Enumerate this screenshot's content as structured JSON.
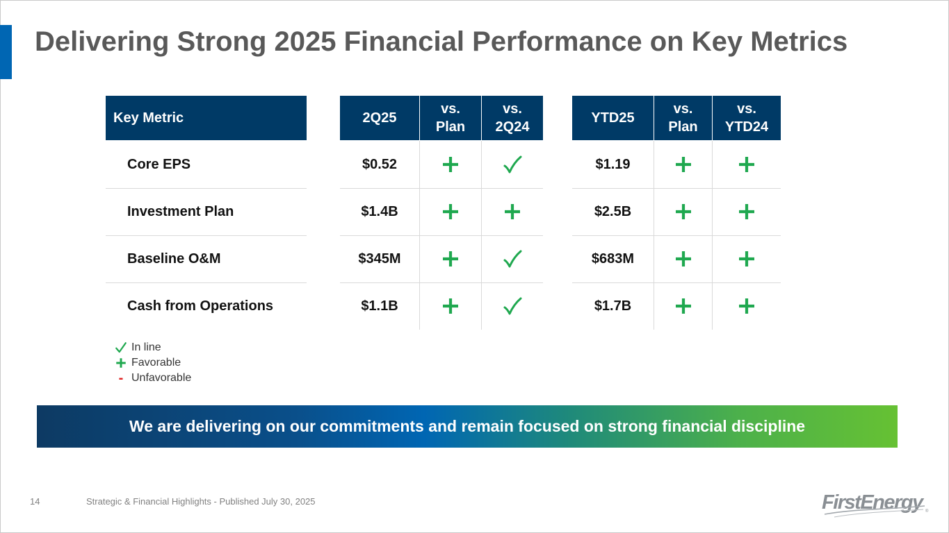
{
  "slide": {
    "title": "Delivering Strong 2025 Financial Performance on Key Metrics",
    "page_number": "14",
    "footer": "Strategic & Financial Highlights - Published July 30, 2025",
    "banner": "We are delivering on our commitments and remain focused on strong financial discipline",
    "logo": "FirstEnergy"
  },
  "colors": {
    "header_bg": "#003a66",
    "favorable": "#1fa84f",
    "unfavorable": "#e02020",
    "accent": "#0066b3"
  },
  "table": {
    "metric_header": "Key Metric",
    "quarter_headers": [
      "2Q25",
      "vs.\nPlan",
      "vs.\n2Q24"
    ],
    "ytd_headers": [
      "YTD25",
      "vs.\nPlan",
      "vs.\nYTD24"
    ],
    "rows": [
      {
        "metric": "Core EPS",
        "q_value": "$0.52",
        "q_vs_plan": "plus",
        "q_vs_prior": "check",
        "ytd_value": "$1.19",
        "ytd_vs_plan": "plus",
        "ytd_vs_prior": "plus"
      },
      {
        "metric": "Investment Plan",
        "q_value": "$1.4B",
        "q_vs_plan": "plus",
        "q_vs_prior": "plus",
        "ytd_value": "$2.5B",
        "ytd_vs_plan": "plus",
        "ytd_vs_prior": "plus"
      },
      {
        "metric": "Baseline O&M",
        "q_value": "$345M",
        "q_vs_plan": "plus",
        "q_vs_prior": "check",
        "ytd_value": "$683M",
        "ytd_vs_plan": "plus",
        "ytd_vs_prior": "plus"
      },
      {
        "metric": "Cash from Operations",
        "q_value": "$1.1B",
        "q_vs_plan": "plus",
        "q_vs_prior": "check",
        "ytd_value": "$1.7B",
        "ytd_vs_plan": "plus",
        "ytd_vs_prior": "plus"
      }
    ]
  },
  "legend": [
    {
      "icon": "check",
      "label": "In line"
    },
    {
      "icon": "plus",
      "label": "Favorable"
    },
    {
      "icon": "minus",
      "label": "Unfavorable"
    }
  ]
}
